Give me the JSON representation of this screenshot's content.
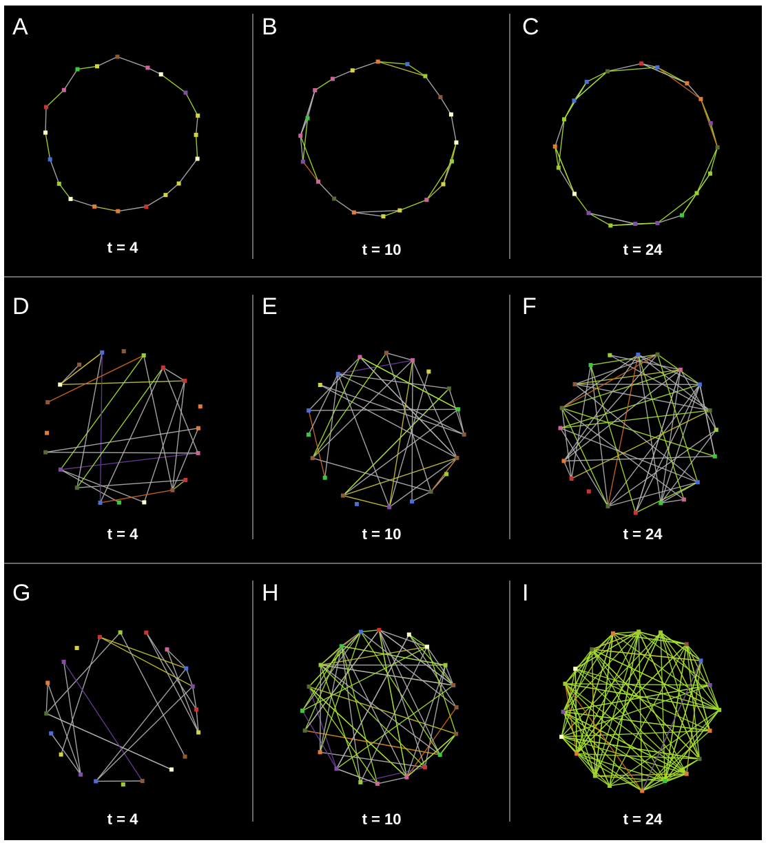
{
  "figure": {
    "panels": [
      {
        "letter": "A",
        "time": "t = 4",
        "links": 18,
        "layout": "ring",
        "green": 0.35
      },
      {
        "letter": "B",
        "time": "t = 10",
        "links": 28,
        "layout": "ring",
        "green": 0.45
      },
      {
        "letter": "C",
        "time": "t = 24",
        "links": 40,
        "layout": "ring",
        "green": 0.55
      },
      {
        "letter": "D",
        "time": "t = 4",
        "links": 24,
        "layout": "random",
        "green": 0.15
      },
      {
        "letter": "E",
        "time": "t = 10",
        "links": 38,
        "layout": "random",
        "green": 0.2
      },
      {
        "letter": "F",
        "time": "t = 24",
        "links": 52,
        "layout": "random",
        "green": 0.25
      },
      {
        "letter": "G",
        "time": "t = 4",
        "links": 22,
        "layout": "random",
        "green": 0.12
      },
      {
        "letter": "H",
        "time": "t = 10",
        "links": 70,
        "layout": "random",
        "green": 0.55
      },
      {
        "letter": "I",
        "time": "t = 24",
        "links": 130,
        "layout": "random",
        "green": 0.9
      }
    ],
    "node_count": 20,
    "colors": {
      "background": "#000000",
      "divider": "#8c8c8c",
      "link_gray": "#b4b4b4",
      "link_green": "#a6e22e",
      "link_yellow": "#c8c832",
      "link_orange": "#d2691e",
      "link_purple": "#6a3d9a",
      "node_palette": [
        "#9acd32",
        "#d4d43c",
        "#e07b39",
        "#cc6699",
        "#cc3333",
        "#7f4fa6",
        "#ffffcc",
        "#556b2f",
        "#4a6fd6",
        "#3cc83c",
        "#8b5a3c"
      ]
    }
  }
}
